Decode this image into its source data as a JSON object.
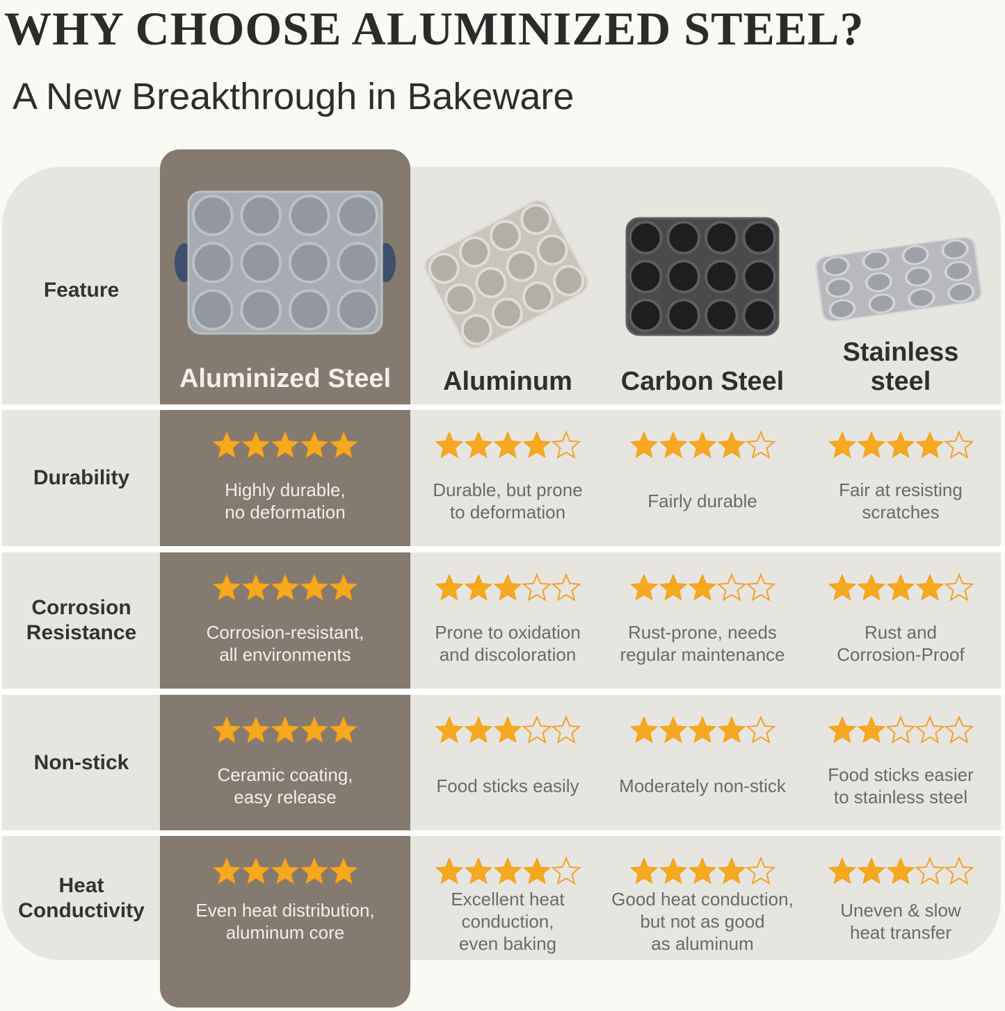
{
  "header": {
    "title": "WHY CHOOSE ALUMINIZED STEEL?",
    "subtitle": "A New Breakthrough in Bakeware"
  },
  "table": {
    "feature_label": "Feature",
    "rating_scale": 5,
    "columns": [
      "Aluminized Steel",
      "Aluminum",
      "Carbon Steel",
      "Stainless\nsteel"
    ],
    "rows": [
      {
        "feature": "Durability",
        "cells": [
          {
            "rating": 5,
            "text": "Highly durable,\nno deformation"
          },
          {
            "rating": 4,
            "text": "Durable, but prone\nto deformation"
          },
          {
            "rating": 4,
            "text": "Fairly durable"
          },
          {
            "rating": 4,
            "text": "Fair at resisting\nscratches"
          }
        ]
      },
      {
        "feature": "Corrosion\nResistance",
        "cells": [
          {
            "rating": 5,
            "text": "Corrosion-resistant,\nall environments"
          },
          {
            "rating": 3,
            "text": "Prone to oxidation\nand discoloration"
          },
          {
            "rating": 3,
            "text": "Rust-prone, needs\nregular maintenance"
          },
          {
            "rating": 4,
            "text": "Rust and\nCorrosion-Proof"
          }
        ]
      },
      {
        "feature": "Non-stick",
        "cells": [
          {
            "rating": 5,
            "text": "Ceramic coating,\neasy release"
          },
          {
            "rating": 3,
            "text": "Food sticks easily"
          },
          {
            "rating": 4,
            "text": "Moderately non-stick"
          },
          {
            "rating": 2,
            "text": "Food sticks easier\nto stainless steel"
          }
        ]
      },
      {
        "feature": "Heat\nConductivity",
        "cells": [
          {
            "rating": 5,
            "text": "Even heat distribution,\naluminum core"
          },
          {
            "rating": 4,
            "text": "Excellent heat\nconduction,\neven baking"
          },
          {
            "rating": 4,
            "text": "Good heat conduction,\nbut not as good\nas aluminum"
          },
          {
            "rating": 3,
            "text": "Uneven & slow\nheat transfer"
          }
        ]
      }
    ]
  }
}
